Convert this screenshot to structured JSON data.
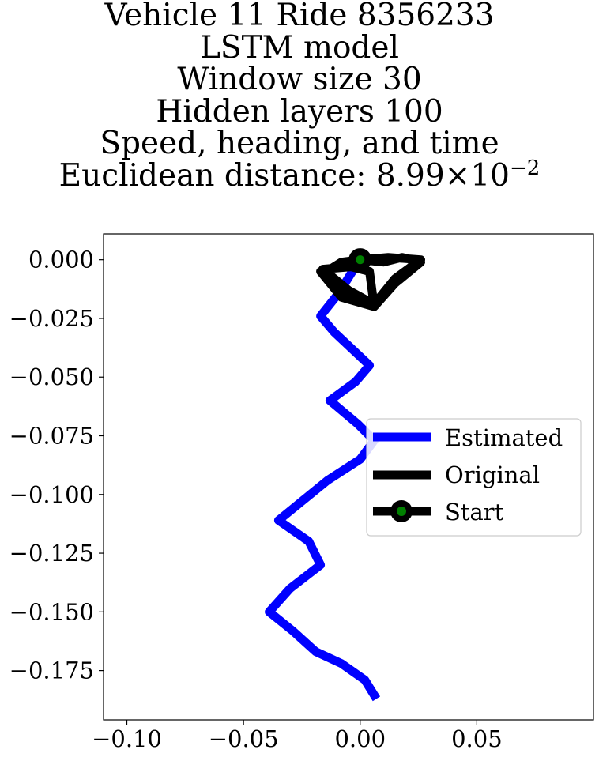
{
  "chart_data": {
    "type": "line",
    "title_lines": [
      "Vehicle 11 Ride 8356233",
      "LSTM model",
      "Window size 30",
      "Hidden layers 100",
      "Speed, heading, and time"
    ],
    "distance_label": "Euclidean distance: ",
    "distance_mantissa": "8.99",
    "distance_times": "×",
    "distance_base": "10",
    "distance_exponent": "−2",
    "xlabel": "",
    "ylabel": "",
    "xlim": [
      -0.11,
      0.1
    ],
    "ylim": [
      -0.196,
      0.011
    ],
    "x_ticks": [
      -0.1,
      -0.05,
      0.0,
      0.05
    ],
    "x_tick_labels": [
      "−0.10",
      "−0.05",
      "0.00",
      "0.05"
    ],
    "y_ticks": [
      0.0,
      -0.025,
      -0.05,
      -0.075,
      -0.1,
      -0.125,
      -0.15,
      -0.175
    ],
    "y_tick_labels": [
      "0.000",
      "−0.025",
      "−0.050",
      "−0.075",
      "−0.100",
      "−0.125",
      "−0.150",
      "−0.175"
    ],
    "grid": false,
    "legend_position": "center-right",
    "series": [
      {
        "name": "Estimated",
        "color": "#0000ff",
        "x": [
          0.0,
          -0.004,
          -0.009,
          -0.017,
          -0.011,
          0.004,
          -0.002,
          -0.013,
          -0.001,
          0.006,
          0.0,
          -0.014,
          -0.035,
          -0.022,
          -0.017,
          -0.03,
          -0.039,
          -0.029,
          -0.019,
          -0.008,
          0.002,
          0.007
        ],
        "y": [
          0.0,
          -0.006,
          -0.014,
          -0.024,
          -0.031,
          -0.045,
          -0.052,
          -0.06,
          -0.07,
          -0.077,
          -0.085,
          -0.094,
          -0.111,
          -0.12,
          -0.13,
          -0.14,
          -0.15,
          -0.158,
          -0.167,
          -0.172,
          -0.179,
          -0.187
        ]
      },
      {
        "name": "Original",
        "color": "#000000",
        "x": [
          0.0,
          0.012,
          0.026,
          0.015,
          0.006,
          -0.005,
          -0.016,
          -0.004,
          0.004,
          0.006,
          -0.006,
          -0.016,
          -0.008,
          0.0,
          0.01,
          0.018,
          0.026,
          0.015,
          0.006,
          -0.008,
          -0.017,
          -0.005,
          0.0
        ],
        "y": [
          0.0,
          0.001,
          0.0,
          -0.008,
          -0.019,
          -0.013,
          -0.004,
          -0.003,
          -0.005,
          -0.02,
          -0.015,
          -0.006,
          -0.001,
          0.0,
          -0.001,
          0.001,
          -0.001,
          -0.01,
          -0.02,
          -0.016,
          -0.005,
          -0.002,
          0.0
        ]
      },
      {
        "name": "Start",
        "color": "#000000",
        "marker_color": "#008000",
        "x": [
          0.0
        ],
        "y": [
          0.0
        ]
      }
    ]
  }
}
